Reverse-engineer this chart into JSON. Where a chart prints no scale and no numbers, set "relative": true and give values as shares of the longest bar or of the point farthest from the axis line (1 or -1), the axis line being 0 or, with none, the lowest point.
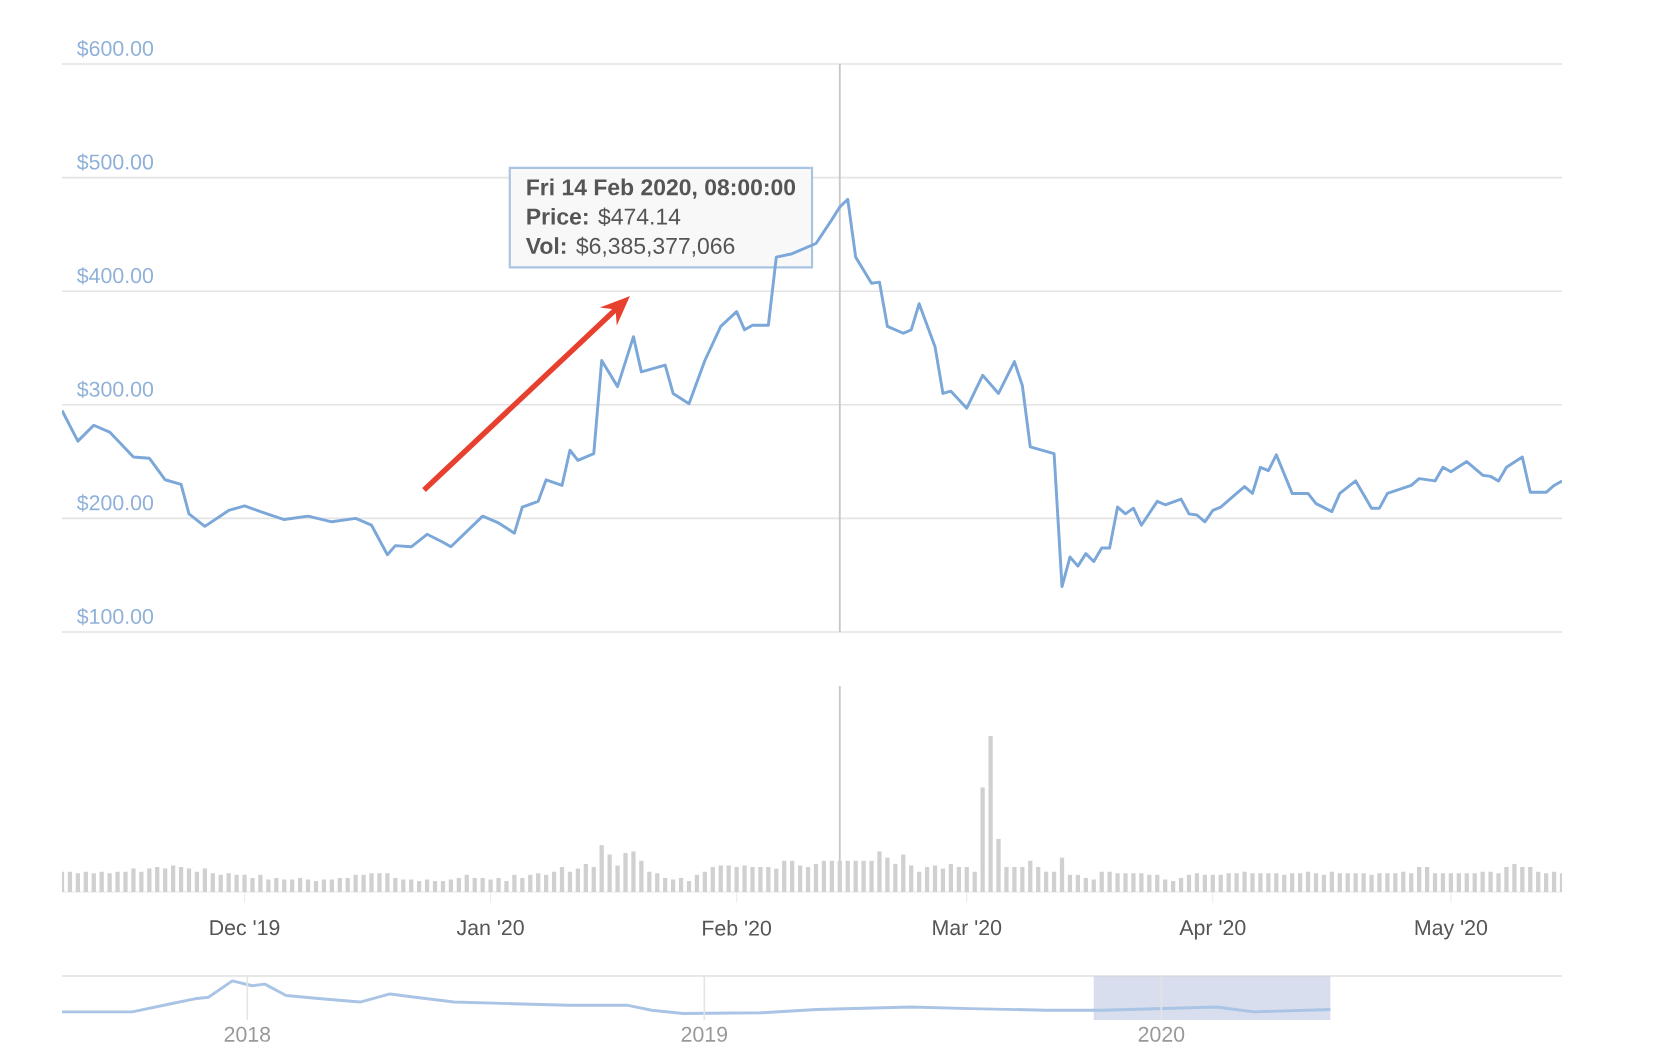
{
  "chart_data": [
    {
      "type": "line",
      "color": "#7ba7d9",
      "grid": "y",
      "tick_labels": "y",
      "xlim": [
        "2019-11-08",
        "2020-05-15"
      ],
      "ylim": [
        100,
        600
      ],
      "yticks": [
        {
          "value": 100,
          "label": "$100.00"
        },
        {
          "value": 200,
          "label": "$200.00"
        },
        {
          "value": 300,
          "label": "$300.00"
        },
        {
          "value": 400,
          "label": "$400.00"
        },
        {
          "value": 500,
          "label": "$500.00"
        },
        {
          "value": 600,
          "label": "$600.00"
        }
      ],
      "ref_lines": [
        {
          "axis": "x",
          "value": "2020-02-14",
          "color": "#c8c8c8"
        }
      ],
      "annotations": [
        {
          "text": "**Fri 14 Feb 2020, 08:00:00**",
          "x": "2020-02-14",
          "y": 474.14
        },
        "**Price:** $474.14",
        "**Vol:** $6,385,377,066"
      ],
      "x": [
        "2019-11-08",
        "2019-11-10",
        "2019-11-12",
        "2019-11-14",
        "2019-11-17",
        "2019-11-19",
        "2019-11-21",
        "2019-11-23",
        "2019-11-24",
        "2019-11-26",
        "2019-11-29",
        "2019-12-01",
        "2019-12-03",
        "2019-12-06",
        "2019-12-09",
        "2019-12-12",
        "2019-12-15",
        "2019-12-17",
        "2019-12-19",
        "2019-12-20",
        "2019-12-22",
        "2019-12-24",
        "2019-12-26",
        "2019-12-27",
        "2019-12-31",
        "2020-01-02",
        "2020-01-04",
        "2020-01-05",
        "2020-01-07",
        "2020-01-08",
        "2020-01-10",
        "2020-01-11",
        "2020-01-12",
        "2020-01-14",
        "2020-01-15",
        "2020-01-17",
        "2020-01-19",
        "2020-01-20",
        "2020-01-23",
        "2020-01-24",
        "2020-01-26",
        "2020-01-28",
        "2020-01-30",
        "2020-02-01",
        "2020-02-02",
        "2020-02-03",
        "2020-02-05",
        "2020-02-06",
        "2020-02-08",
        "2020-02-11",
        "2020-02-13",
        "2020-02-14",
        "2020-02-15",
        "2020-02-16",
        "2020-02-18",
        "2020-02-19",
        "2020-02-20",
        "2020-02-22",
        "2020-02-23",
        "2020-02-24",
        "2020-02-26",
        "2020-02-27",
        "2020-02-28",
        "2020-03-01",
        "2020-03-03",
        "2020-03-05",
        "2020-03-07",
        "2020-03-08",
        "2020-03-09",
        "2020-03-12",
        "2020-03-13",
        "2020-03-14",
        "2020-03-15",
        "2020-03-16",
        "2020-03-17",
        "2020-03-18",
        "2020-03-19",
        "2020-03-20",
        "2020-03-21",
        "2020-03-22",
        "2020-03-23",
        "2020-03-25",
        "2020-03-26",
        "2020-03-28",
        "2020-03-29",
        "2020-03-30",
        "2020-03-31",
        "2020-04-01",
        "2020-04-02",
        "2020-04-04",
        "2020-04-05",
        "2020-04-06",
        "2020-04-07",
        "2020-04-08",
        "2020-04-09",
        "2020-04-11",
        "2020-04-13",
        "2020-04-14",
        "2020-04-16",
        "2020-04-17",
        "2020-04-19",
        "2020-04-21",
        "2020-04-22",
        "2020-04-23",
        "2020-04-26",
        "2020-04-27",
        "2020-04-29",
        "2020-04-30",
        "2020-05-01",
        "2020-05-03",
        "2020-05-05",
        "2020-05-06",
        "2020-05-07",
        "2020-05-08",
        "2020-05-10",
        "2020-05-11",
        "2020-05-13",
        "2020-05-14",
        "2020-05-15"
      ],
      "values": [
        295,
        268,
        282,
        276,
        254,
        253,
        234,
        230,
        204,
        193,
        207,
        211,
        206,
        199,
        202,
        197,
        200,
        194,
        168,
        176,
        175,
        186,
        179,
        175,
        202,
        196,
        187,
        210,
        215,
        234,
        229,
        260,
        251,
        257,
        339,
        316,
        360,
        329,
        335,
        310,
        301,
        339,
        369,
        382,
        366,
        370,
        370,
        430,
        433,
        442,
        463,
        474.14,
        481,
        430,
        407,
        408,
        369,
        363,
        366,
        389,
        351,
        310,
        312,
        297,
        326,
        310,
        338,
        317,
        263,
        257,
        140,
        166,
        158,
        169,
        162,
        174,
        174,
        210,
        204,
        209,
        194,
        215,
        212,
        217,
        204,
        203,
        197,
        207,
        210,
        222,
        228,
        222,
        245,
        242,
        256,
        222,
        222,
        213,
        206,
        222,
        233,
        209,
        209,
        222,
        229,
        235,
        233,
        245,
        241,
        250,
        238,
        237,
        233,
        245,
        254,
        223,
        223,
        229,
        233
      ]
    },
    {
      "type": "bar",
      "color": "#d0d0d0",
      "relative": true,
      "tick_labels": "x",
      "xlim": [
        "2019-11-08",
        "2020-05-15"
      ],
      "xticks": [
        {
          "value": "2019-12-01",
          "label": "Dec '19"
        },
        {
          "value": "2020-01-01",
          "label": "Jan '20"
        },
        {
          "value": "2020-02-01",
          "label": "Feb '20"
        },
        {
          "value": "2020-03-01",
          "label": "Mar '20"
        },
        {
          "value": "2020-04-01",
          "label": "Apr '20"
        },
        {
          "value": "2020-05-01",
          "label": "May '20"
        }
      ],
      "ref_lines": [
        {
          "axis": "x",
          "value": "2020-02-14",
          "color": "#c8c8c8"
        }
      ],
      "x": [
        "2019-11-08",
        "2019-11-09",
        "2019-11-10",
        "2019-11-11",
        "2019-11-12",
        "2019-11-13",
        "2019-11-14",
        "2019-11-15",
        "2019-11-16",
        "2019-11-17",
        "2019-11-18",
        "2019-11-19",
        "2019-11-20",
        "2019-11-21",
        "2019-11-22",
        "2019-11-23",
        "2019-11-24",
        "2019-11-25",
        "2019-11-26",
        "2019-11-27",
        "2019-11-28",
        "2019-11-29",
        "2019-11-30",
        "2019-12-01",
        "2019-12-02",
        "2019-12-03",
        "2019-12-04",
        "2019-12-05",
        "2019-12-06",
        "2019-12-07",
        "2019-12-08",
        "2019-12-09",
        "2019-12-10",
        "2019-12-11",
        "2019-12-12",
        "2019-12-13",
        "2019-12-14",
        "2019-12-15",
        "2019-12-16",
        "2019-12-17",
        "2019-12-18",
        "2019-12-19",
        "2019-12-20",
        "2019-12-21",
        "2019-12-22",
        "2019-12-23",
        "2019-12-24",
        "2019-12-25",
        "2019-12-26",
        "2019-12-27",
        "2019-12-28",
        "2019-12-29",
        "2019-12-30",
        "2019-12-31",
        "2020-01-01",
        "2020-01-02",
        "2020-01-03",
        "2020-01-04",
        "2020-01-05",
        "2020-01-06",
        "2020-01-07",
        "2020-01-08",
        "2020-01-09",
        "2020-01-10",
        "2020-01-11",
        "2020-01-12",
        "2020-01-13",
        "2020-01-14",
        "2020-01-15",
        "2020-01-16",
        "2020-01-17",
        "2020-01-18",
        "2020-01-19",
        "2020-01-20",
        "2020-01-21",
        "2020-01-22",
        "2020-01-23",
        "2020-01-24",
        "2020-01-25",
        "2020-01-26",
        "2020-01-27",
        "2020-01-28",
        "2020-01-29",
        "2020-01-30",
        "2020-01-31",
        "2020-02-01",
        "2020-02-02",
        "2020-02-03",
        "2020-02-04",
        "2020-02-05",
        "2020-02-06",
        "2020-02-07",
        "2020-02-08",
        "2020-02-09",
        "2020-02-10",
        "2020-02-11",
        "2020-02-12",
        "2020-02-13",
        "2020-02-14",
        "2020-02-15",
        "2020-02-16",
        "2020-02-17",
        "2020-02-18",
        "2020-02-19",
        "2020-02-20",
        "2020-02-21",
        "2020-02-22",
        "2020-02-23",
        "2020-02-24",
        "2020-02-25",
        "2020-02-26",
        "2020-02-27",
        "2020-02-28",
        "2020-02-29",
        "2020-03-01",
        "2020-03-02",
        "2020-03-03",
        "2020-03-04",
        "2020-03-05",
        "2020-03-06",
        "2020-03-07",
        "2020-03-08",
        "2020-03-09",
        "2020-03-10",
        "2020-03-11",
        "2020-03-12",
        "2020-03-13",
        "2020-03-14",
        "2020-03-15",
        "2020-03-16",
        "2020-03-17",
        "2020-03-18",
        "2020-03-19",
        "2020-03-20",
        "2020-03-21",
        "2020-03-22",
        "2020-03-23",
        "2020-03-24",
        "2020-03-25",
        "2020-03-26",
        "2020-03-27",
        "2020-03-28",
        "2020-03-29",
        "2020-03-30",
        "2020-03-31",
        "2020-04-01",
        "2020-04-02",
        "2020-04-03",
        "2020-04-04",
        "2020-04-05",
        "2020-04-06",
        "2020-04-07",
        "2020-04-08",
        "2020-04-09",
        "2020-04-10",
        "2020-04-11",
        "2020-04-12",
        "2020-04-13",
        "2020-04-14",
        "2020-04-15",
        "2020-04-16",
        "2020-04-17",
        "2020-04-18",
        "2020-04-19",
        "2020-04-20",
        "2020-04-21",
        "2020-04-22",
        "2020-04-23",
        "2020-04-24",
        "2020-04-25",
        "2020-04-26",
        "2020-04-27",
        "2020-04-28",
        "2020-04-29",
        "2020-04-30",
        "2020-05-01",
        "2020-05-02",
        "2020-05-03",
        "2020-05-04",
        "2020-05-05",
        "2020-05-06",
        "2020-05-07",
        "2020-05-08",
        "2020-05-09",
        "2020-05-10",
        "2020-05-11",
        "2020-05-12",
        "2020-05-13",
        "2020-05-14",
        "2020-05-15"
      ],
      "values": [
        0.13,
        0.13,
        0.12,
        0.13,
        0.12,
        0.13,
        0.12,
        0.13,
        0.13,
        0.15,
        0.13,
        0.15,
        0.16,
        0.15,
        0.17,
        0.16,
        0.15,
        0.13,
        0.15,
        0.12,
        0.11,
        0.12,
        0.11,
        0.11,
        0.09,
        0.11,
        0.08,
        0.09,
        0.08,
        0.08,
        0.09,
        0.08,
        0.07,
        0.08,
        0.08,
        0.09,
        0.09,
        0.11,
        0.11,
        0.12,
        0.12,
        0.12,
        0.09,
        0.08,
        0.08,
        0.07,
        0.08,
        0.07,
        0.07,
        0.08,
        0.09,
        0.11,
        0.09,
        0.09,
        0.08,
        0.09,
        0.07,
        0.11,
        0.09,
        0.11,
        0.12,
        0.11,
        0.13,
        0.16,
        0.13,
        0.15,
        0.18,
        0.16,
        0.3,
        0.24,
        0.17,
        0.25,
        0.26,
        0.2,
        0.13,
        0.12,
        0.09,
        0.08,
        0.09,
        0.07,
        0.11,
        0.13,
        0.16,
        0.17,
        0.17,
        0.16,
        0.17,
        0.16,
        0.16,
        0.16,
        0.15,
        0.2,
        0.2,
        0.17,
        0.16,
        0.18,
        0.2,
        0.2,
        0.2,
        0.2,
        0.2,
        0.2,
        0.2,
        0.26,
        0.22,
        0.18,
        0.24,
        0.17,
        0.13,
        0.16,
        0.17,
        0.15,
        0.18,
        0.16,
        0.16,
        0.13,
        0.67,
        1,
        0.34,
        0.16,
        0.16,
        0.16,
        0.2,
        0.16,
        0.13,
        0.13,
        0.22,
        0.11,
        0.11,
        0.09,
        0.08,
        0.13,
        0.13,
        0.12,
        0.12,
        0.12,
        0.12,
        0.11,
        0.11,
        0.08,
        0.07,
        0.09,
        0.11,
        0.12,
        0.11,
        0.11,
        0.11,
        0.12,
        0.12,
        0.13,
        0.12,
        0.12,
        0.12,
        0.12,
        0.11,
        0.12,
        0.12,
        0.13,
        0.12,
        0.11,
        0.13,
        0.12,
        0.12,
        0.12,
        0.12,
        0.11,
        0.12,
        0.12,
        0.12,
        0.13,
        0.12,
        0.16,
        0.16,
        0.12,
        0.12,
        0.12,
        0.12,
        0.12,
        0.12,
        0.13,
        0.13,
        0.12,
        0.16,
        0.18,
        0.16,
        0.16,
        0.13,
        0.12,
        0.13,
        0.12
      ]
    },
    {
      "type": "line",
      "color": "#a9c4e4",
      "relative": true,
      "grid": "x",
      "tick_labels": "x",
      "xlim": [
        "2017-08-06",
        "2020-11-16"
      ],
      "xticks": [
        {
          "value": "2018-01-01",
          "label": "2018"
        },
        {
          "value": "2019-01-01",
          "label": "2019"
        },
        {
          "value": "2020-01-01",
          "label": "2020"
        }
      ],
      "bands": [
        {
          "axis": "x",
          "from": "2019-11-08",
          "to": "2020-05-15",
          "color": "#d8deee"
        }
      ],
      "x": [
        "2017-08-06",
        "2017-10-01",
        "2017-11-01",
        "2017-11-20",
        "2017-12-01",
        "2017-12-20",
        "2018-01-05",
        "2018-01-15",
        "2018-02-01",
        "2018-03-01",
        "2018-04-01",
        "2018-04-25",
        "2018-05-15",
        "2018-06-15",
        "2018-08-01",
        "2018-09-15",
        "2018-11-01",
        "2018-11-20",
        "2018-12-15",
        "2019-02-15",
        "2019-04-01",
        "2019-06-15",
        "2019-08-01",
        "2019-10-01",
        "2019-11-15",
        "2020-02-14",
        "2020-03-15",
        "2020-05-15"
      ],
      "values": [
        0.05,
        0.05,
        0.3,
        0.45,
        0.5,
        1,
        0.85,
        0.9,
        0.55,
        0.45,
        0.35,
        0.6,
        0.5,
        0.35,
        0.3,
        0.25,
        0.25,
        0.1,
        0,
        0.02,
        0.12,
        0.2,
        0.15,
        0.1,
        0.1,
        0.2,
        0.05,
        0.12
      ]
    }
  ]
}
